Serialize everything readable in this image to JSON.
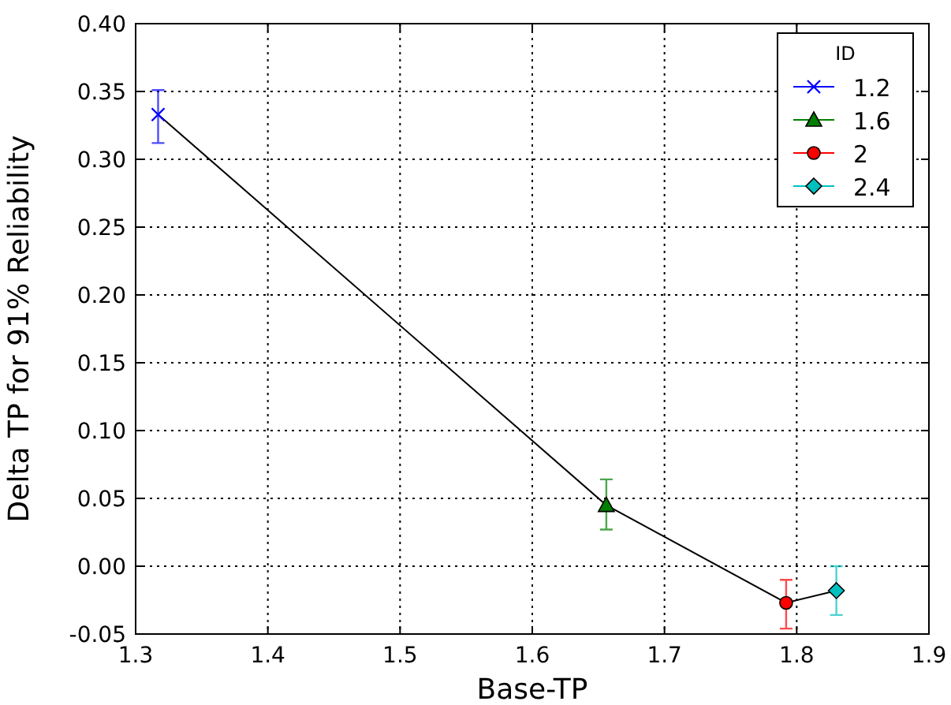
{
  "chart_data": {
    "type": "scatter",
    "xlabel": "Base-TP",
    "ylabel": "Delta TP for 91% Reliability",
    "legend_title": "ID",
    "legend": "top right",
    "grid": true,
    "xlim": [
      1.3,
      1.9
    ],
    "xticks": [
      1.3,
      1.4,
      1.5,
      1.6,
      1.7,
      1.8,
      1.9
    ],
    "ylim": [
      -0.05,
      0.4
    ],
    "yticks": [
      {
        "value": -0.05,
        "label": "-0.05"
      },
      {
        "value": 0,
        "label": "0.00"
      },
      {
        "value": 0.05,
        "label": "0.05"
      },
      {
        "value": 0.1,
        "label": "0.10"
      },
      {
        "value": 0.15,
        "label": "0.15"
      },
      {
        "value": 0.2,
        "label": "0.20"
      },
      {
        "value": 0.25,
        "label": "0.25"
      },
      {
        "value": 0.3,
        "label": "0.30"
      },
      {
        "value": 0.35,
        "label": "0.35"
      },
      {
        "value": 0.4,
        "label": "0.40"
      }
    ],
    "series": [
      {
        "type": "line",
        "color": "#000000",
        "marker": "none",
        "x": [
          1.317,
          1.656,
          1.792,
          1.83
        ],
        "values": [
          0.333,
          0.045,
          -0.027,
          -0.018
        ]
      },
      {
        "name": "1.2",
        "color": "#0000ff",
        "marker": "cross",
        "x": [
          1.317
        ],
        "values": [
          0.333
        ],
        "errors": [
          [
            0.312,
            0.351
          ]
        ]
      },
      {
        "name": "1.6",
        "color": "#008000",
        "marker": "triangle",
        "x": [
          1.656
        ],
        "values": [
          0.045
        ],
        "errors": [
          [
            0.027,
            0.064
          ]
        ]
      },
      {
        "name": "2",
        "color": "#ff0000",
        "marker": "circle",
        "x": [
          1.792
        ],
        "values": [
          -0.027
        ],
        "errors": [
          [
            -0.046,
            -0.01
          ]
        ]
      },
      {
        "name": "2.4",
        "color": "#00bfbf",
        "marker": "diamond",
        "x": [
          1.83
        ],
        "values": [
          -0.018
        ],
        "errors": [
          [
            -0.036,
            0
          ]
        ]
      }
    ]
  }
}
